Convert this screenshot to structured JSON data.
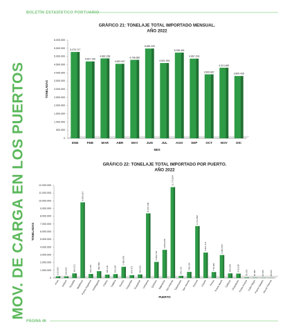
{
  "header": {
    "title": "BOLETÍN ESTADÍSTICO PORTUARIO"
  },
  "side_title": "MOV. DE CARGA EN LOS PUERTOS",
  "footer": {
    "page": "PÁGINA 46"
  },
  "chart_data": [
    {
      "type": "bar",
      "title": "GRÁFICO 21: TONELAJE TOTAL IMPORTADO MENSUAL.",
      "subtitle": "AÑO 2022",
      "x_label": "MES",
      "y_label": "TONELADAS",
      "color": "#2e9b47",
      "categories": [
        "ENE",
        "FEB",
        "MAR",
        "ABR",
        "MAY",
        "JUN",
        "JUL",
        "AGO",
        "SEP",
        "OCT",
        "NOV",
        "DIC"
      ],
      "values": [
        5276717,
        4697196,
        4882238,
        4552007,
        4796650,
        5485209,
        4601494,
        5236461,
        4867193,
        3909667,
        4313482,
        3809428
      ],
      "value_labels": [
        "5.276.717",
        "4.697.196",
        "4.882.238",
        "4.552.007",
        "4.796.650",
        "5.485.209",
        "4.601.494",
        "5.236.461",
        "4.867.193",
        "3.909.667",
        "4.313.482",
        "3.809.428"
      ],
      "ylim": [
        0,
        6000000
      ],
      "yticks": [
        {
          "value": 0,
          "label": "0"
        },
        {
          "value": 500000,
          "label": "500.000"
        },
        {
          "value": 1000000,
          "label": "1.000.000"
        },
        {
          "value": 1500000,
          "label": "1.500.000"
        },
        {
          "value": 2000000,
          "label": "2.000.000"
        },
        {
          "value": 2500000,
          "label": "2.500.000"
        },
        {
          "value": 3000000,
          "label": "3.000.000"
        },
        {
          "value": 3500000,
          "label": "3.500.000"
        },
        {
          "value": 4000000,
          "label": "4.000.000"
        },
        {
          "value": 4500000,
          "label": "4.500.000"
        },
        {
          "value": 5000000,
          "label": "5.000.000"
        },
        {
          "value": 5500000,
          "label": "5.500.000"
        },
        {
          "value": 6000000,
          "label": "6.000.000"
        }
      ],
      "grid": false
    },
    {
      "type": "bar",
      "title": "GRÁFICO 22: TONELAJE TOTAL IMPORTADO POR PUERTO.",
      "subtitle": "AÑO 2022",
      "x_label": "PUERTO",
      "y_label": "TONELADAS",
      "color": "#2e9b47",
      "categories": [
        "Arica",
        "Iquique",
        "Tocopilla",
        "Mejillones",
        "Puerto Angamos",
        "Antofagasta",
        "Coloso",
        "Caldera",
        "Huasco",
        "Coquimbo",
        "Guayacán",
        "Ventanas",
        "Quintero",
        "Valparaíso",
        "San Antonio",
        "Talcahuano",
        "San Vicente",
        "Coronel",
        "Lirquén",
        "Penco",
        "Puerto Montt",
        "Calbuco",
        "Chacabuco",
        "Punta Arenas",
        "Cabo Negro",
        "Puerto Natales",
        "Isla de Pascua"
      ],
      "values": [
        215305,
        205530,
        603221,
        9803627,
        531183,
        890550,
        445149,
        510537,
        1455878,
        375472,
        463901,
        8374346,
        2089718,
        3653295,
        11772594,
        281131,
        795136,
        6731852,
        3301471,
        778480,
        2981537,
        605189,
        579238,
        75000,
        46460,
        32150,
        28000
      ],
      "value_labels": [
        "215.305",
        "205.530",
        "603.221",
        "9.803.627",
        "531.183",
        "890.550",
        "445.149",
        "510.537",
        "1.455.878",
        "375.472",
        "463.901",
        "8.374.346",
        "2.089.718",
        "3.653.295",
        "11.772.594",
        "281.131",
        "795.136",
        "6.731.852",
        "3.301.471",
        "778.480",
        "2.981.537",
        "605.189",
        "579.238",
        "75.000",
        "46.460",
        "32.150",
        "28.000"
      ],
      "ylim": [
        0,
        12000000
      ],
      "yticks": [
        {
          "value": 0,
          "label": "0"
        },
        {
          "value": 1000000,
          "label": "1.000.000"
        },
        {
          "value": 2000000,
          "label": "2.000.000"
        },
        {
          "value": 3000000,
          "label": "3.000.000"
        },
        {
          "value": 4000000,
          "label": "4.000.000"
        },
        {
          "value": 5000000,
          "label": "5.000.000"
        },
        {
          "value": 6000000,
          "label": "6.000.000"
        },
        {
          "value": 7000000,
          "label": "7.000.000"
        },
        {
          "value": 8000000,
          "label": "8.000.000"
        },
        {
          "value": 9000000,
          "label": "9.000.000"
        },
        {
          "value": 10000000,
          "label": "10.000.000"
        },
        {
          "value": 11000000,
          "label": "11.000.000"
        },
        {
          "value": 12000000,
          "label": "12.000.000"
        }
      ],
      "grid": false
    }
  ]
}
